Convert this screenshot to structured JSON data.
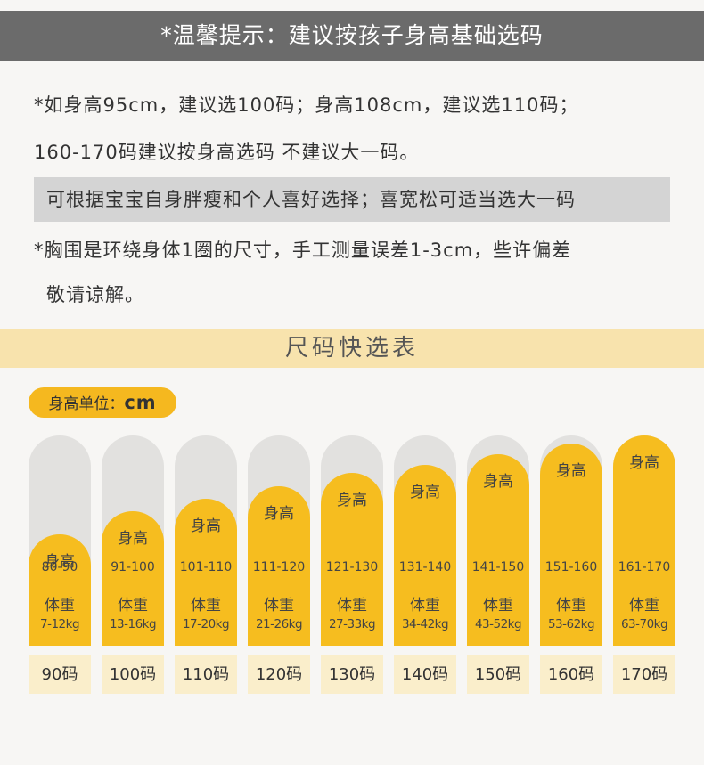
{
  "banner": {
    "title": "*温馨提示：建议按孩子身高基础选码"
  },
  "notes": {
    "line1": "*如身高95cm，建议选100码；身高108cm，建议选110码；",
    "line2": "160-170码建议按身高选码 不建议大一码。",
    "highlight": "可根据宝宝自身胖瘦和个人喜好选择；喜宽松可适当选大一码",
    "line3": "*胸围是环绕身体1圈的尺寸，手工测量误差1-3cm，些许偏差",
    "line4": "敬请谅解。"
  },
  "section": {
    "title": "尺码快选表"
  },
  "unit": {
    "label": "身高单位：",
    "value": "cm"
  },
  "colors": {
    "accent": "#f6bd1f",
    "banner": "#6b6b6b",
    "band": "#f8e3ad",
    "size_cell": "#faeecb"
  },
  "sizes": [
    {
      "height_label": "身高",
      "height": "80-90",
      "weight_label": "体重",
      "weight": "7-12kg",
      "size": "90码",
      "bar_level": 0.53
    },
    {
      "height_label": "身高",
      "height": "91-100",
      "weight_label": "体重",
      "weight": "13-16kg",
      "size": "100码",
      "bar_level": 0.64
    },
    {
      "height_label": "身高",
      "height": "101-110",
      "weight_label": "体重",
      "weight": "17-20kg",
      "size": "110码",
      "bar_level": 0.7
    },
    {
      "height_label": "身高",
      "height": "111-120",
      "weight_label": "体重",
      "weight": "21-26kg",
      "size": "120码",
      "bar_level": 0.76
    },
    {
      "height_label": "身高",
      "height": "121-130",
      "weight_label": "体重",
      "weight": "27-33kg",
      "size": "130码",
      "bar_level": 0.82
    },
    {
      "height_label": "身高",
      "height": "131-140",
      "weight_label": "体重",
      "weight": "34-42kg",
      "size": "140码",
      "bar_level": 0.86
    },
    {
      "height_label": "身高",
      "height": "141-150",
      "weight_label": "体重",
      "weight": "43-52kg",
      "size": "150码",
      "bar_level": 0.91
    },
    {
      "height_label": "身高",
      "height": "151-160",
      "weight_label": "体重",
      "weight": "53-62kg",
      "size": "160码",
      "bar_level": 0.96
    },
    {
      "height_label": "身高",
      "height": "161-170",
      "weight_label": "体重",
      "weight": "63-70kg",
      "size": "170码",
      "bar_level": 1.0
    }
  ]
}
